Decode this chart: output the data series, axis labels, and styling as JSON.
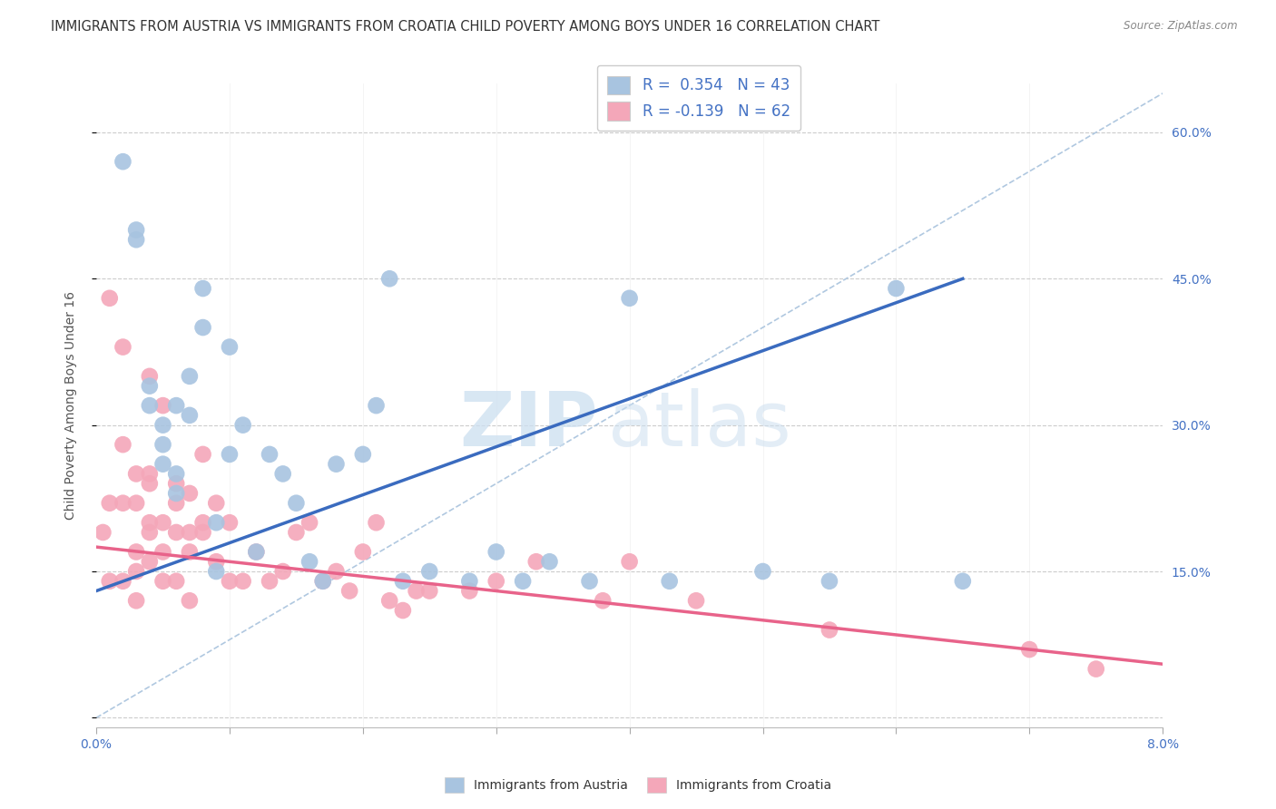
{
  "title": "IMMIGRANTS FROM AUSTRIA VS IMMIGRANTS FROM CROATIA CHILD POVERTY AMONG BOYS UNDER 16 CORRELATION CHART",
  "source": "Source: ZipAtlas.com",
  "ylabel": "Child Poverty Among Boys Under 16",
  "y_ticks": [
    0.0,
    0.15,
    0.3,
    0.45,
    0.6
  ],
  "y_tick_labels_right": [
    "",
    "15.0%",
    "30.0%",
    "45.0%",
    "60.0%"
  ],
  "xlim": [
    0.0,
    0.08
  ],
  "ylim": [
    -0.01,
    0.65
  ],
  "austria_color": "#a8c4e0",
  "croatia_color": "#f4a7b9",
  "austria_line_color": "#3a6bbf",
  "croatia_line_color": "#e8638a",
  "austria_R": 0.354,
  "austria_N": 43,
  "croatia_R": -0.139,
  "croatia_N": 62,
  "legend_text_color": "#4472c4",
  "watermark_zip": "ZIP",
  "watermark_atlas": "atlas",
  "austria_scatter_x": [
    0.002,
    0.003,
    0.003,
    0.004,
    0.004,
    0.005,
    0.005,
    0.005,
    0.006,
    0.006,
    0.006,
    0.007,
    0.007,
    0.008,
    0.008,
    0.009,
    0.009,
    0.01,
    0.01,
    0.011,
    0.012,
    0.013,
    0.014,
    0.015,
    0.016,
    0.017,
    0.018,
    0.02,
    0.021,
    0.022,
    0.023,
    0.025,
    0.028,
    0.03,
    0.032,
    0.034,
    0.037,
    0.04,
    0.043,
    0.05,
    0.055,
    0.06,
    0.065
  ],
  "austria_scatter_y": [
    0.57,
    0.49,
    0.5,
    0.34,
    0.32,
    0.3,
    0.28,
    0.26,
    0.32,
    0.25,
    0.23,
    0.35,
    0.31,
    0.4,
    0.44,
    0.2,
    0.15,
    0.38,
    0.27,
    0.3,
    0.17,
    0.27,
    0.25,
    0.22,
    0.16,
    0.14,
    0.26,
    0.27,
    0.32,
    0.45,
    0.14,
    0.15,
    0.14,
    0.17,
    0.14,
    0.16,
    0.14,
    0.43,
    0.14,
    0.15,
    0.14,
    0.44,
    0.14
  ],
  "croatia_scatter_x": [
    0.0005,
    0.001,
    0.001,
    0.001,
    0.002,
    0.002,
    0.002,
    0.002,
    0.003,
    0.003,
    0.003,
    0.003,
    0.003,
    0.004,
    0.004,
    0.004,
    0.004,
    0.004,
    0.004,
    0.005,
    0.005,
    0.005,
    0.005,
    0.006,
    0.006,
    0.006,
    0.006,
    0.007,
    0.007,
    0.007,
    0.007,
    0.008,
    0.008,
    0.008,
    0.009,
    0.009,
    0.01,
    0.01,
    0.011,
    0.012,
    0.013,
    0.014,
    0.015,
    0.016,
    0.017,
    0.018,
    0.019,
    0.02,
    0.021,
    0.022,
    0.023,
    0.024,
    0.025,
    0.028,
    0.03,
    0.033,
    0.038,
    0.04,
    0.045,
    0.055,
    0.07,
    0.075
  ],
  "croatia_scatter_y": [
    0.19,
    0.14,
    0.22,
    0.43,
    0.38,
    0.28,
    0.14,
    0.22,
    0.25,
    0.22,
    0.17,
    0.15,
    0.12,
    0.35,
    0.25,
    0.24,
    0.2,
    0.19,
    0.16,
    0.32,
    0.2,
    0.17,
    0.14,
    0.24,
    0.22,
    0.19,
    0.14,
    0.23,
    0.19,
    0.17,
    0.12,
    0.27,
    0.2,
    0.19,
    0.22,
    0.16,
    0.2,
    0.14,
    0.14,
    0.17,
    0.14,
    0.15,
    0.19,
    0.2,
    0.14,
    0.15,
    0.13,
    0.17,
    0.2,
    0.12,
    0.11,
    0.13,
    0.13,
    0.13,
    0.14,
    0.16,
    0.12,
    0.16,
    0.12,
    0.09,
    0.07,
    0.05
  ],
  "background_color": "#ffffff",
  "grid_color": "#cccccc",
  "title_fontsize": 10.5,
  "axis_label_fontsize": 10,
  "tick_fontsize": 10,
  "legend_fontsize": 12
}
